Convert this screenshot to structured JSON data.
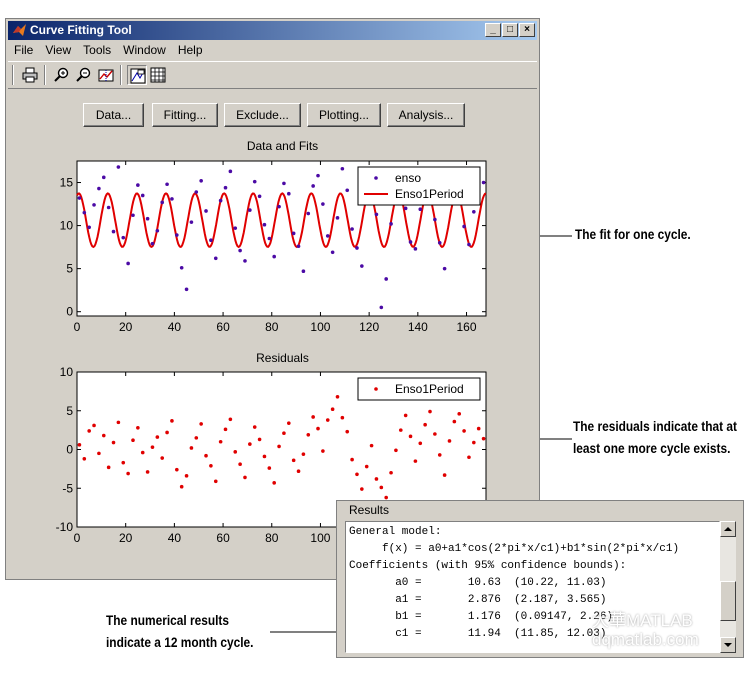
{
  "window": {
    "title": "Curve Fitting Tool",
    "controls": [
      "_",
      "□",
      "×"
    ]
  },
  "menu": [
    "File",
    "View",
    "Tools",
    "Window",
    "Help"
  ],
  "toolbar_icons": [
    "print-icon",
    "zoom-in-icon",
    "zoom-out-icon",
    "data-cursor-icon",
    "legend-icon",
    "grid-icon"
  ],
  "buttons": [
    "Data...",
    "Fitting...",
    "Exclude...",
    "Plotting...",
    "Analysis..."
  ],
  "plots": {
    "fit_title": "Data and Fits",
    "resid_title": "Residuals"
  },
  "chart_data": [
    {
      "type": "scatter",
      "title": "Data and Fits",
      "xlabel": "",
      "ylabel": "",
      "xlim": [
        0,
        168
      ],
      "ylim": [
        -0.5,
        17.5
      ],
      "xticks": [
        0,
        20,
        40,
        60,
        80,
        100,
        120,
        140,
        160
      ],
      "yticks": [
        0,
        5,
        10,
        15
      ],
      "legend": {
        "placement": "top-right",
        "entries": [
          "enso",
          "Enso1Period"
        ]
      },
      "colors": {
        "data": "#4b0aa5",
        "fit": "#e00000"
      },
      "fit_model": {
        "a0": 10.63,
        "a1": 2.876,
        "b1": 1.176,
        "c1": 11.94
      },
      "series": [
        {
          "name": "enso",
          "style": "points",
          "x": [
            1,
            3,
            5,
            7,
            9,
            11,
            13,
            15,
            17,
            19,
            21,
            23,
            25,
            27,
            29,
            31,
            33,
            35,
            37,
            39,
            41,
            43,
            45,
            47,
            49,
            51,
            53,
            55,
            57,
            59,
            61,
            63,
            65,
            67,
            69,
            71,
            73,
            75,
            77,
            79,
            81,
            83,
            85,
            87,
            89,
            91,
            93,
            95,
            97,
            99,
            101,
            103,
            105,
            107,
            109,
            111,
            113,
            115,
            117,
            119,
            121,
            123,
            125,
            127,
            129,
            131,
            133,
            135,
            137,
            139,
            141,
            143,
            145,
            147,
            149,
            151,
            153,
            155,
            157,
            159,
            161,
            163,
            165,
            167
          ],
          "y": [
            13.2,
            11.5,
            9.8,
            12.4,
            14.3,
            15.6,
            12.1,
            9.3,
            16.8,
            8.6,
            5.6,
            11.2,
            14.7,
            13.5,
            10.8,
            7.9,
            9.4,
            12.7,
            14.8,
            13.1,
            8.9,
            5.1,
            2.6,
            10.4,
            13.9,
            15.2,
            11.7,
            8.3,
            6.2,
            12.9,
            14.4,
            16.3,
            9.7,
            7.1,
            5.9,
            11.8,
            15.1,
            13.4,
            10.1,
            8.5,
            6.4,
            12.2,
            14.9,
            13.7,
            9.1,
            7.6,
            4.7,
            11.4,
            14.6,
            15.8,
            12.5,
            8.8,
            6.9,
            10.9,
            16.6,
            14.1,
            9.6,
            7.4,
            5.3,
            12.8,
            13.6,
            11.3,
            0.5,
            3.8,
            10.2,
            14.5,
            15.4,
            12.0,
            8.1,
            7.3,
            11.9,
            13.3,
            15.9,
            10.7,
            8.0,
            5.0,
            12.6,
            14.2,
            16.1,
            9.9,
            7.8,
            11.6,
            13.8,
            15.0
          ]
        },
        {
          "name": "Enso1Period",
          "style": "line",
          "model": "a0+a1*cos(2*pi*x/c1)+b1*sin(2*pi*x/c1)"
        }
      ]
    },
    {
      "type": "scatter",
      "title": "Residuals",
      "xlabel": "",
      "ylabel": "",
      "xlim": [
        0,
        168
      ],
      "ylim": [
        -10,
        10
      ],
      "xticks": [
        0,
        20,
        40,
        60,
        80,
        100
      ],
      "yticks": [
        10,
        5,
        0,
        -5,
        -10
      ],
      "legend": {
        "placement": "top-right",
        "entries": [
          "Enso1Period"
        ]
      },
      "colors": {
        "points": "#e00000"
      },
      "series": [
        {
          "name": "Enso1Period",
          "style": "points",
          "x": [
            1,
            3,
            5,
            7,
            9,
            11,
            13,
            15,
            17,
            19,
            21,
            23,
            25,
            27,
            29,
            31,
            33,
            35,
            37,
            39,
            41,
            43,
            45,
            47,
            49,
            51,
            53,
            55,
            57,
            59,
            61,
            63,
            65,
            67,
            69,
            71,
            73,
            75,
            77,
            79,
            81,
            83,
            85,
            87,
            89,
            91,
            93,
            95,
            97,
            99,
            101,
            103,
            105,
            107,
            109,
            111,
            113,
            115,
            117,
            119,
            121,
            123,
            125,
            127,
            129,
            131,
            133,
            135,
            137,
            139,
            141,
            143,
            145,
            147,
            149,
            151,
            153,
            155,
            157,
            159,
            161,
            163,
            165,
            167
          ],
          "y": [
            0.6,
            -1.2,
            2.4,
            3.1,
            -0.5,
            1.8,
            -2.3,
            0.9,
            3.5,
            -1.7,
            -3.1,
            1.2,
            2.8,
            -0.4,
            -2.9,
            0.3,
            1.6,
            -1.1,
            2.2,
            3.7,
            -2.6,
            -4.8,
            -3.4,
            0.2,
            1.5,
            3.3,
            -0.8,
            -2.1,
            -4.1,
            1.0,
            2.6,
            3.9,
            -0.3,
            -1.9,
            -3.6,
            0.7,
            2.9,
            1.3,
            -0.9,
            -2.4,
            -4.3,
            0.4,
            2.1,
            3.4,
            -1.4,
            -2.8,
            -0.6,
            1.9,
            4.2,
            2.7,
            -0.2,
            3.8,
            5.2,
            6.8,
            4.1,
            2.3,
            -1.3,
            -3.2,
            -5.1,
            -2.2,
            0.5,
            -3.8,
            -4.9,
            -6.2,
            -3.0,
            -0.1,
            2.5,
            4.4,
            1.7,
            -1.5,
            0.8,
            3.2,
            4.9,
            2.0,
            -0.7,
            -3.3,
            1.1,
            3.6,
            4.6,
            2.4,
            -1.0,
            0.9,
            2.7,
            1.4
          ]
        }
      ]
    }
  ],
  "annotations": {
    "fit_cycle": "The fit for one cycle.",
    "residuals_line1": "The residuals indicate that at",
    "residuals_line2": "least one more cycle exists.",
    "numerical_line1": "The numerical results",
    "numerical_line2": "indicate a 12 month cycle."
  },
  "results": {
    "title": "Results",
    "lines": [
      "General model:",
      "     f(x) = a0+a1*cos(2*pi*x/c1)+b1*sin(2*pi*x/c1)",
      "Coefficients (with 95% confidence bounds):",
      "       a0 =       10.63  (10.22, 11.03)",
      "       a1 =       2.876  (2.187, 3.565)",
      "       b1 =       1.176  (0.09147, 2.26)",
      "       c1 =       11.94  (11.85, 12.03)"
    ]
  },
  "watermark": {
    "line1": "大華MATLAB",
    "line2": "dqmatlab.com"
  }
}
